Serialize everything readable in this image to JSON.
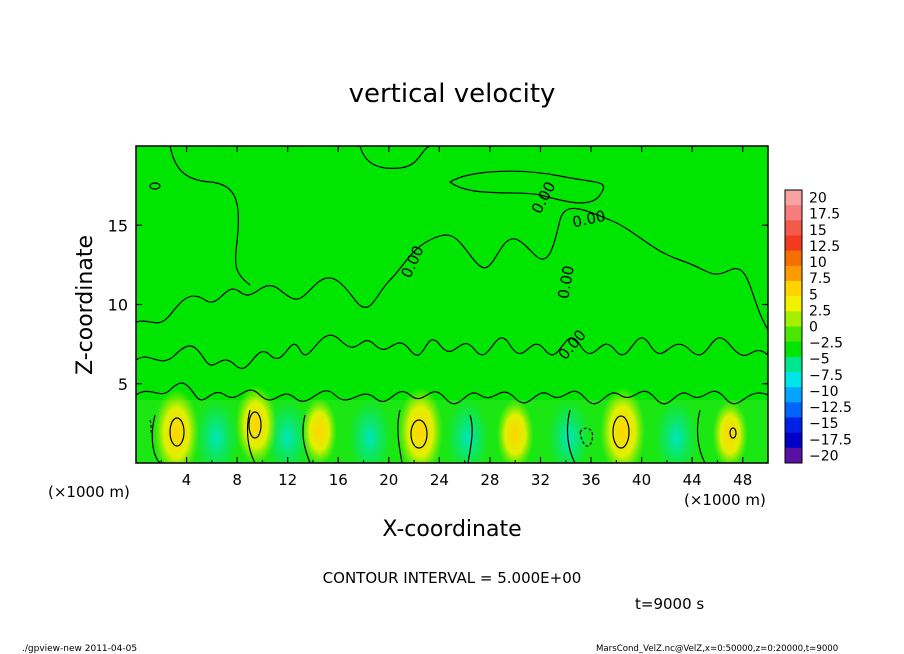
{
  "chart_data": {
    "type": "heatmap",
    "title": "vertical velocity",
    "xlabel": "X-coordinate",
    "ylabel": "Z-coordinate",
    "x_unit_left": "(×1000 m)",
    "x_unit_right": "(×1000 m)",
    "xlim": [
      0,
      50
    ],
    "ylim": [
      0,
      20
    ],
    "x_ticks": [
      "4",
      "8",
      "12",
      "16",
      "20",
      "24",
      "28",
      "32",
      "36",
      "40",
      "44",
      "48"
    ],
    "y_ticks": [
      "5",
      "10",
      "15"
    ],
    "y_tick_values": [
      5,
      10,
      15
    ],
    "contour_labels": [
      "0.00",
      "0.00",
      "0.00",
      "0.00",
      "0.00"
    ],
    "contour_interval": "CONTOUR INTERVAL = 5.000E+00",
    "time": "t=9000 s",
    "updrafts": [
      {
        "x": 3.2,
        "z": 1.9,
        "w": 7.5
      },
      {
        "x": 9.5,
        "z": 2.4,
        "w": 6.0
      },
      {
        "x": 14.5,
        "z": 2.0,
        "w": 4.0
      },
      {
        "x": 22.5,
        "z": 2.0,
        "w": 7.5
      },
      {
        "x": 30.0,
        "z": 1.8,
        "w": 4.5
      },
      {
        "x": 38.5,
        "z": 2.0,
        "w": 7.5
      },
      {
        "x": 47.0,
        "z": 1.8,
        "w": 4.0
      }
    ],
    "colorbar": {
      "labels": [
        "20",
        "17.5",
        "15",
        "12.5",
        "10",
        "7.5",
        "5",
        "2.5",
        "0",
        "-2.5",
        "-5",
        "-7.5",
        "-10",
        "-12.5",
        "-15",
        "-17.5",
        "-20"
      ],
      "colors": [
        "#f7a3a3",
        "#f77d7d",
        "#f25a4a",
        "#f23a1e",
        "#f76f00",
        "#ff9b00",
        "#ffd400",
        "#f2f200",
        "#a5f000",
        "#4ae600",
        "#00e600",
        "#00e68c",
        "#00e6e6",
        "#00a5ff",
        "#0064ff",
        "#0020e6",
        "#0000c8",
        "#5a0fa5"
      ]
    }
  },
  "footer": {
    "left": "./gpview-new  2011-04-05",
    "right": "MarsCond_VelZ.nc@VelZ,x=0:50000,z=0:20000,t=9000"
  }
}
